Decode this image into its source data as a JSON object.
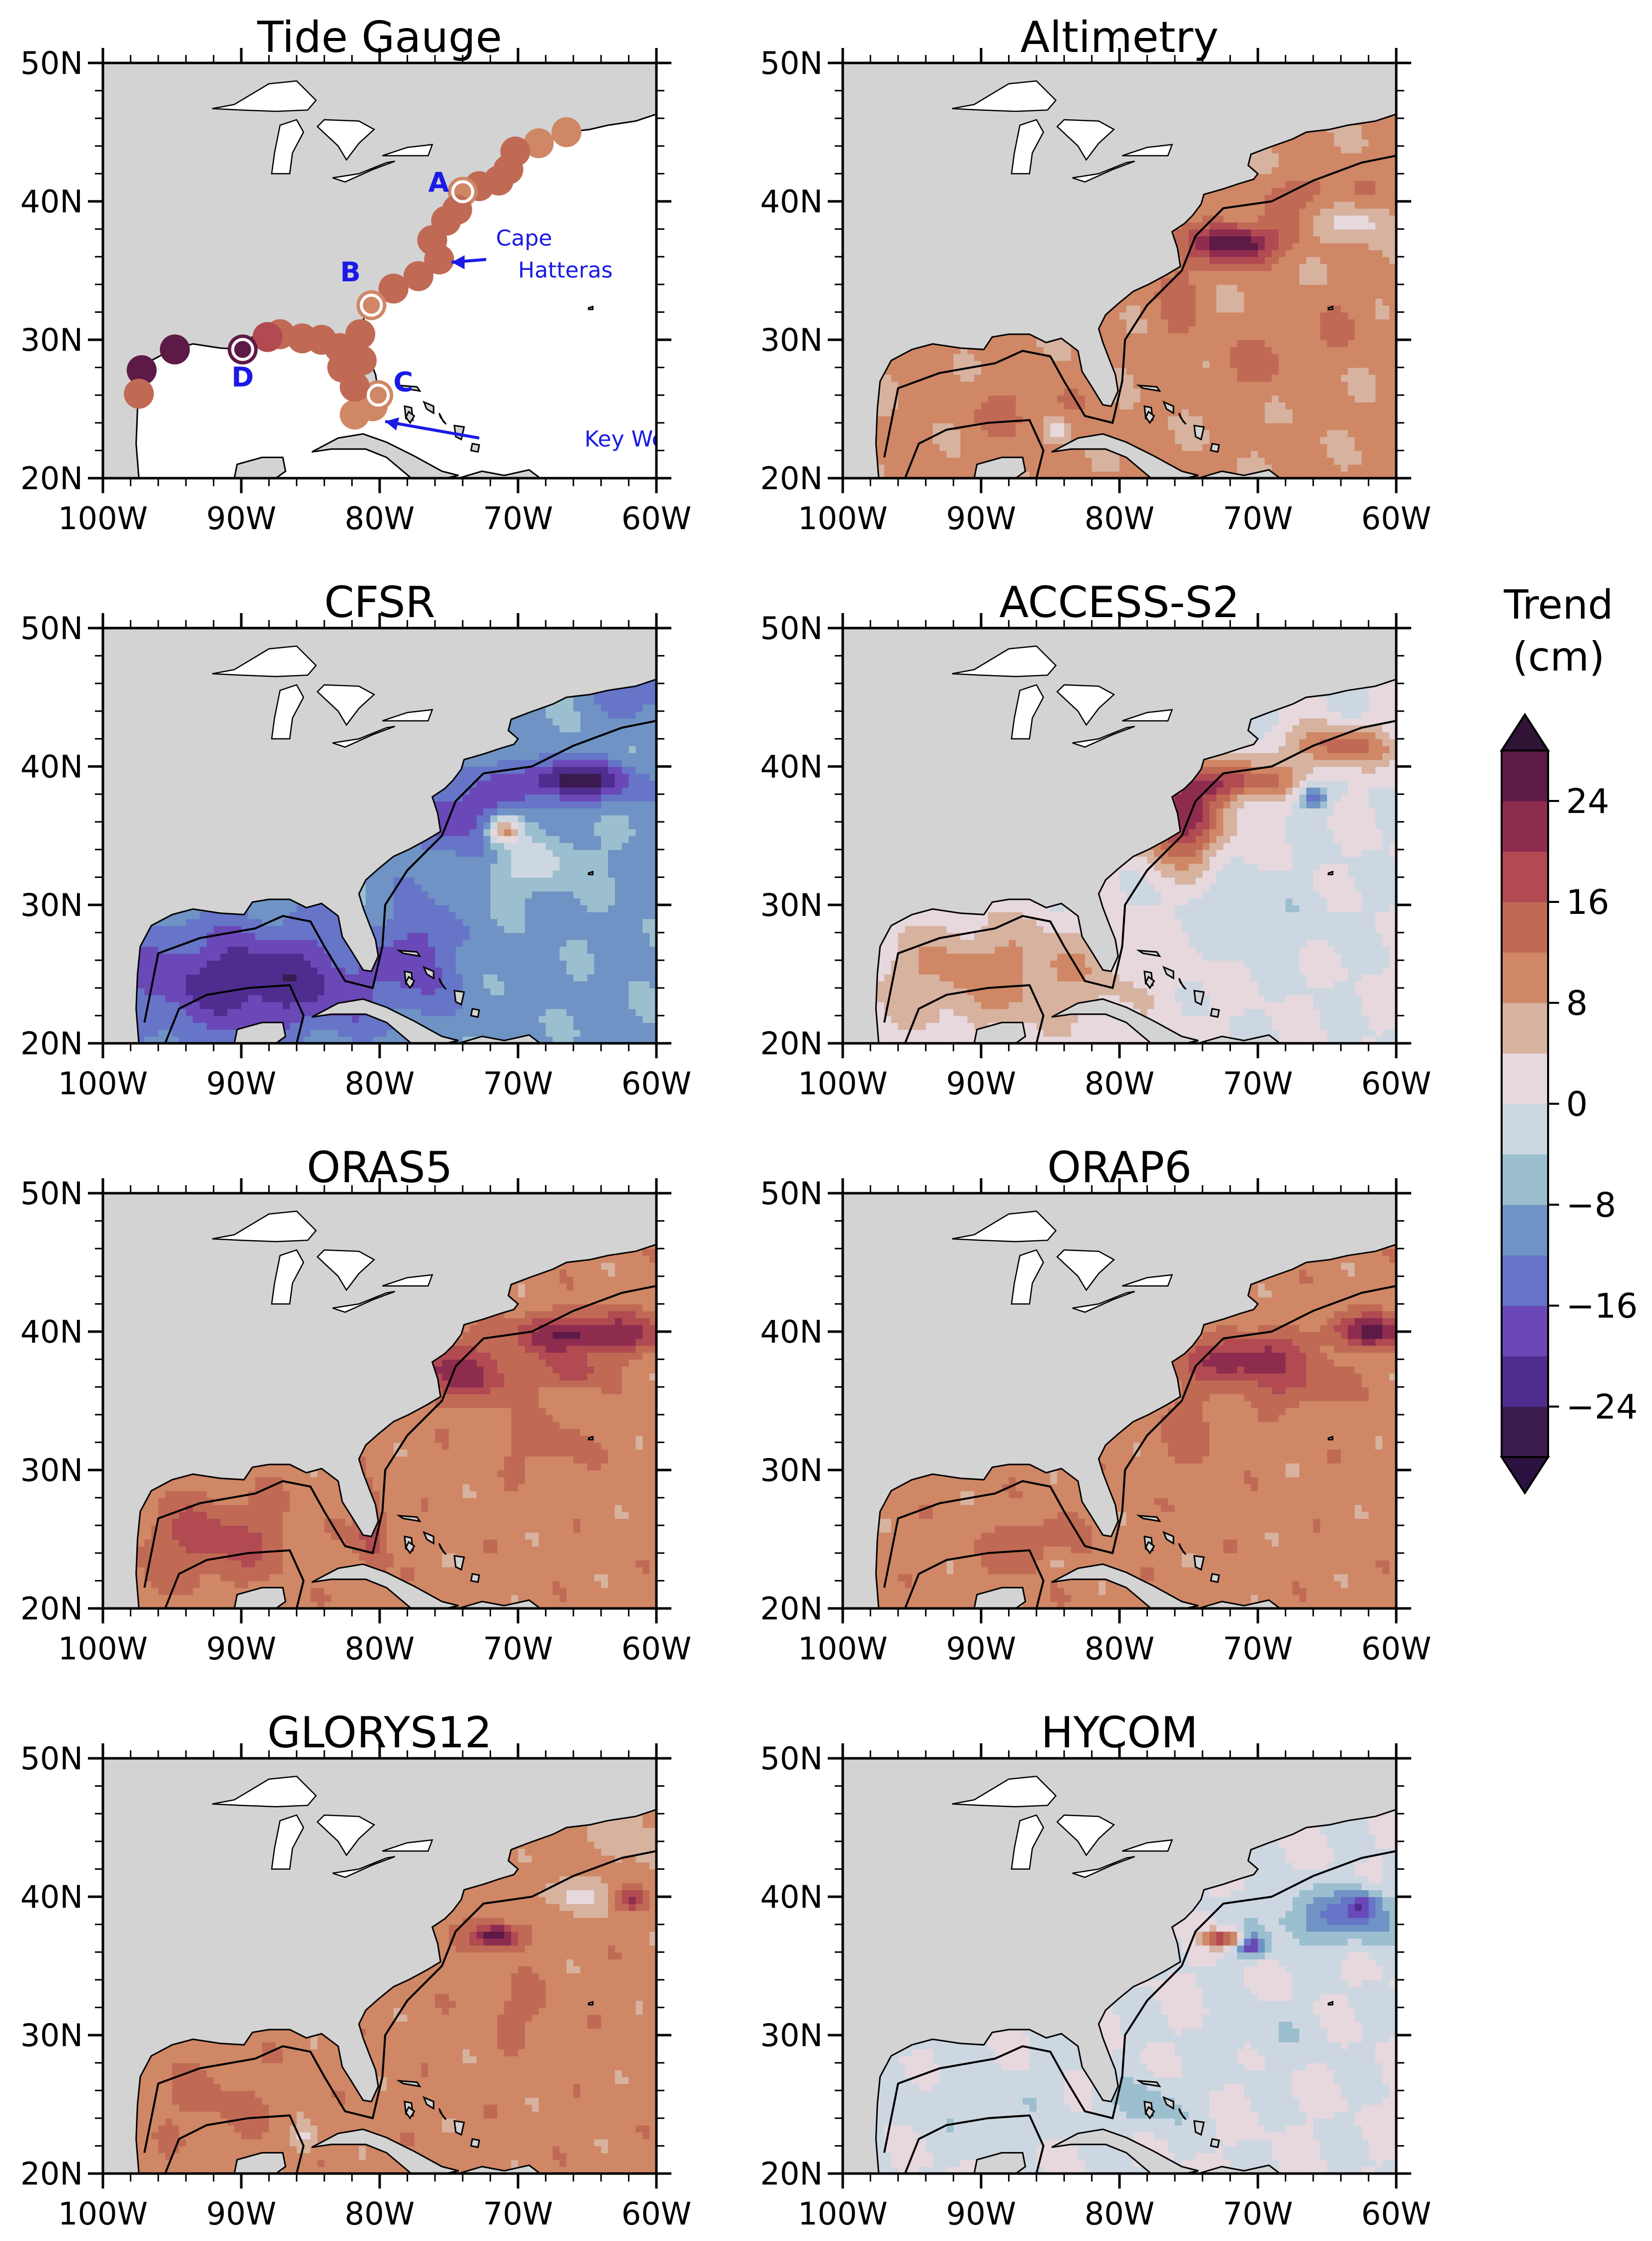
{
  "figure": {
    "colorbar": {
      "title_line1": "Trend",
      "title_line2": "(cm)",
      "levels": [
        -28,
        -24,
        -20,
        -16,
        -12,
        -8,
        -4,
        0,
        4,
        8,
        12,
        16,
        20,
        24,
        28
      ],
      "colors": [
        "#3b1b4f",
        "#4f2d8f",
        "#6a48b8",
        "#6675c7",
        "#6f93c4",
        "#9cbfcf",
        "#cdd7e2",
        "#e6d8dd",
        "#d7b29f",
        "#cf8766",
        "#c06a55",
        "#b14a51",
        "#8e2c4f",
        "#5e1a46"
      ],
      "over_color": "#2f1436",
      "under_color": "#2b1240",
      "tick_labels": [
        "24",
        "16",
        "8",
        "0",
        "−8",
        "−16",
        "−24"
      ],
      "tick_values": [
        24,
        16,
        8,
        0,
        -8,
        -16,
        -24
      ]
    },
    "axes": {
      "x_ticks": [
        "100W",
        "90W",
        "80W",
        "70W",
        "60W"
      ],
      "x_values": [
        -100,
        -90,
        -80,
        -70,
        -60
      ],
      "y_ticks": [
        "50N",
        "40N",
        "30N",
        "20N"
      ],
      "y_values": [
        50,
        40,
        30,
        20
      ]
    }
  },
  "chart_data": [
    {
      "type": "heatmap",
      "title": "Tide Gauge",
      "xlim": [
        -100,
        -60
      ],
      "ylim": [
        20,
        50
      ],
      "style": "stations",
      "stations": [
        {
          "lon": -66.5,
          "lat": 45.0,
          "trend": 10
        },
        {
          "lon": -68.5,
          "lat": 44.2,
          "trend": 11
        },
        {
          "lon": -70.2,
          "lat": 43.6,
          "trend": 12
        },
        {
          "lon": -70.7,
          "lat": 42.3,
          "trend": 12
        },
        {
          "lon": -71.4,
          "lat": 41.5,
          "trend": 12
        },
        {
          "lon": -72.8,
          "lat": 41.1,
          "trend": 13
        },
        {
          "lon": -74.0,
          "lat": 40.7,
          "trend": 9
        },
        {
          "lon": -74.4,
          "lat": 39.4,
          "trend": 14
        },
        {
          "lon": -75.2,
          "lat": 38.6,
          "trend": 13
        },
        {
          "lon": -76.2,
          "lat": 37.2,
          "trend": 14
        },
        {
          "lon": -75.7,
          "lat": 35.8,
          "trend": 15
        },
        {
          "lon": -77.2,
          "lat": 34.6,
          "trend": 12
        },
        {
          "lon": -79.0,
          "lat": 33.7,
          "trend": 12
        },
        {
          "lon": -80.6,
          "lat": 32.5,
          "trend": 11
        },
        {
          "lon": -81.4,
          "lat": 30.4,
          "trend": 12
        },
        {
          "lon": -81.3,
          "lat": 28.5,
          "trend": 12
        },
        {
          "lon": -80.1,
          "lat": 26.0,
          "trend": 9
        },
        {
          "lon": -80.5,
          "lat": 25.2,
          "trend": 10
        },
        {
          "lon": -81.8,
          "lat": 24.6,
          "trend": 11
        },
        {
          "lon": -81.8,
          "lat": 26.6,
          "trend": 13
        },
        {
          "lon": -82.7,
          "lat": 28.0,
          "trend": 15
        },
        {
          "lon": -82.9,
          "lat": 29.4,
          "trend": 14
        },
        {
          "lon": -84.2,
          "lat": 30.0,
          "trend": 13
        },
        {
          "lon": -85.6,
          "lat": 30.1,
          "trend": 13
        },
        {
          "lon": -87.2,
          "lat": 30.4,
          "trend": 15
        },
        {
          "lon": -88.1,
          "lat": 30.2,
          "trend": 16
        },
        {
          "lon": -89.9,
          "lat": 29.3,
          "trend": 26
        },
        {
          "lon": -94.8,
          "lat": 29.3,
          "trend": 27
        },
        {
          "lon": -97.2,
          "lat": 27.8,
          "trend": 27
        },
        {
          "lon": -97.4,
          "lat": 26.1,
          "trend": 14
        }
      ],
      "annotations": [
        {
          "text": "A",
          "lon": -74.0,
          "lat": 40.7
        },
        {
          "text": "B",
          "lon": -80.6,
          "lat": 32.5
        },
        {
          "text": "C",
          "lon": -80.1,
          "lat": 26.0
        },
        {
          "text": "D",
          "lon": -89.9,
          "lat": 29.3
        },
        {
          "text": "Cape",
          "lon": -71.6,
          "lat": 36.8
        },
        {
          "text": "Hatteras",
          "lon": -70.0,
          "lat": 34.5
        },
        {
          "text": "Key West",
          "lon": -65.2,
          "lat": 22.3
        }
      ]
    },
    {
      "type": "heatmap",
      "title": "Altimetry",
      "xlim": [
        -100,
        -60
      ],
      "ylim": [
        20,
        50
      ],
      "style": "field",
      "base": 9,
      "features": [
        {
          "lon": -71.5,
          "lat": 37.0,
          "rx": 3.0,
          "ry": 1.4,
          "amp": 20
        },
        {
          "lon": -66.0,
          "lat": 40.5,
          "rx": 4.0,
          "ry": 1.5,
          "amp": 5
        },
        {
          "lon": -63.0,
          "lat": 38.5,
          "rx": 2.5,
          "ry": 1.5,
          "amp": -7
        },
        {
          "lon": -76.0,
          "lat": 33.0,
          "rx": 2.0,
          "ry": 4.0,
          "amp": 4
        },
        {
          "lon": -87.0,
          "lat": 25.0,
          "rx": 4.0,
          "ry": 2.5,
          "amp": 4
        },
        {
          "lon": -84.5,
          "lat": 23.5,
          "rx": 1.0,
          "ry": 1.0,
          "amp": -8
        },
        {
          "lon": -70.0,
          "lat": 28.0,
          "rx": 3.0,
          "ry": 2.0,
          "amp": 4
        },
        {
          "lon": -64.0,
          "lat": 31.0,
          "rx": 3.0,
          "ry": 2.0,
          "amp": 3
        }
      ]
    },
    {
      "type": "heatmap",
      "title": "CFSR",
      "xlim": [
        -100,
        -60
      ],
      "ylim": [
        20,
        50
      ],
      "style": "field",
      "base": -9,
      "features": [
        {
          "lon": -89.0,
          "lat": 24.5,
          "rx": 10.0,
          "ry": 4.0,
          "amp": -14
        },
        {
          "lon": -77.0,
          "lat": 27.0,
          "rx": 2.0,
          "ry": 4.0,
          "amp": -8
        },
        {
          "lon": -74.0,
          "lat": 36.5,
          "rx": 3.5,
          "ry": 3.0,
          "amp": -10
        },
        {
          "lon": -66.0,
          "lat": 39.0,
          "rx": 4.5,
          "ry": 1.5,
          "amp": -17
        },
        {
          "lon": -71.0,
          "lat": 35.5,
          "rx": 1.2,
          "ry": 1.0,
          "amp": 22
        },
        {
          "lon": -69.0,
          "lat": 33.0,
          "rx": 4.0,
          "ry": 2.0,
          "amp": 7
        },
        {
          "lon": -61.0,
          "lat": 47.0,
          "rx": 3.0,
          "ry": 3.0,
          "amp": -9
        }
      ]
    },
    {
      "type": "heatmap",
      "title": "ACCESS-S2",
      "xlim": [
        -100,
        -60
      ],
      "ylim": [
        20,
        50
      ],
      "style": "field",
      "base": 0,
      "features": [
        {
          "lon": -75.5,
          "lat": 36.0,
          "rx": 3.0,
          "ry": 3.0,
          "amp": 22
        },
        {
          "lon": -72.0,
          "lat": 39.0,
          "rx": 4.5,
          "ry": 1.4,
          "amp": 18
        },
        {
          "lon": -64.0,
          "lat": 41.5,
          "rx": 4.0,
          "ry": 1.5,
          "amp": 14
        },
        {
          "lon": -66.0,
          "lat": 37.8,
          "rx": 1.0,
          "ry": 0.8,
          "amp": -18
        },
        {
          "lon": -89.0,
          "lat": 25.0,
          "rx": 10.0,
          "ry": 4.0,
          "amp": 10
        },
        {
          "lon": -70.0,
          "lat": 29.0,
          "rx": 5.0,
          "ry": 3.0,
          "amp": -3
        }
      ]
    },
    {
      "type": "heatmap",
      "title": "ORAS5",
      "xlim": [
        -100,
        -60
      ],
      "ylim": [
        20,
        50
      ],
      "style": "field",
      "base": 10,
      "features": [
        {
          "lon": -74.0,
          "lat": 37.0,
          "rx": 4.0,
          "ry": 2.0,
          "amp": 12
        },
        {
          "lon": -65.0,
          "lat": 39.8,
          "rx": 5.0,
          "ry": 1.5,
          "amp": 16
        },
        {
          "lon": -92.0,
          "lat": 25.0,
          "rx": 5.0,
          "ry": 3.0,
          "amp": 8
        },
        {
          "lon": -80.5,
          "lat": 25.5,
          "rx": 1.0,
          "ry": 2.5,
          "amp": 10
        },
        {
          "lon": -68.0,
          "lat": 32.0,
          "rx": 3.0,
          "ry": 2.0,
          "amp": 4
        },
        {
          "lon": -66.0,
          "lat": 37.0,
          "rx": 2.0,
          "ry": 1.0,
          "amp": 8
        }
      ]
    },
    {
      "type": "heatmap",
      "title": "ORAP6",
      "xlim": [
        -100,
        -60
      ],
      "ylim": [
        20,
        50
      ],
      "style": "field",
      "base": 10,
      "features": [
        {
          "lon": -71.0,
          "lat": 38.0,
          "rx": 4.0,
          "ry": 1.6,
          "amp": 14
        },
        {
          "lon": -62.0,
          "lat": 40.0,
          "rx": 3.0,
          "ry": 1.2,
          "amp": 14
        },
        {
          "lon": -67.0,
          "lat": 36.0,
          "rx": 3.0,
          "ry": 1.5,
          "amp": 6
        },
        {
          "lon": -86.0,
          "lat": 24.5,
          "rx": 3.0,
          "ry": 2.0,
          "amp": 6
        },
        {
          "lon": -84.5,
          "lat": 23.5,
          "rx": 1.0,
          "ry": 1.0,
          "amp": -6
        },
        {
          "lon": -75.0,
          "lat": 33.0,
          "rx": 2.0,
          "ry": 3.0,
          "amp": 4
        }
      ]
    },
    {
      "type": "heatmap",
      "title": "GLORYS12",
      "xlim": [
        -100,
        -60
      ],
      "ylim": [
        20,
        50
      ],
      "style": "field",
      "base": 10,
      "features": [
        {
          "lon": -71.5,
          "lat": 37.2,
          "rx": 1.8,
          "ry": 0.9,
          "amp": 18
        },
        {
          "lon": -66.0,
          "lat": 40.0,
          "rx": 3.0,
          "ry": 1.2,
          "amp": -6
        },
        {
          "lon": -62.0,
          "lat": 39.8,
          "rx": 1.2,
          "ry": 0.8,
          "amp": 10
        },
        {
          "lon": -61.0,
          "lat": 45.0,
          "rx": 4.0,
          "ry": 3.0,
          "amp": -4
        },
        {
          "lon": -85.5,
          "lat": 22.5,
          "rx": 1.0,
          "ry": 1.0,
          "amp": -7
        },
        {
          "lon": -70.0,
          "lat": 32.0,
          "rx": 3.0,
          "ry": 2.0,
          "amp": 3
        },
        {
          "lon": -92.0,
          "lat": 25.0,
          "rx": 4.0,
          "ry": 3.0,
          "amp": 3
        }
      ]
    },
    {
      "type": "heatmap",
      "title": "HYCOM",
      "xlim": [
        -100,
        -60
      ],
      "ylim": [
        20,
        50
      ],
      "style": "field",
      "base": 0,
      "features": [
        {
          "lon": -72.5,
          "lat": 37.0,
          "rx": 1.5,
          "ry": 0.6,
          "amp": 20
        },
        {
          "lon": -70.5,
          "lat": 36.5,
          "rx": 1.0,
          "ry": 0.8,
          "amp": -20
        },
        {
          "lon": -64.0,
          "lat": 38.5,
          "rx": 5.0,
          "ry": 2.0,
          "amp": -12
        },
        {
          "lon": -62.5,
          "lat": 39.5,
          "rx": 1.2,
          "ry": 1.0,
          "amp": -12
        },
        {
          "lon": -78.0,
          "lat": 25.0,
          "rx": 3.0,
          "ry": 2.0,
          "amp": -6
        },
        {
          "lon": -90.0,
          "lat": 25.0,
          "rx": 6.0,
          "ry": 3.0,
          "amp": -3
        },
        {
          "lon": -69.0,
          "lat": 30.0,
          "rx": 4.0,
          "ry": 2.0,
          "amp": -3
        }
      ]
    }
  ]
}
